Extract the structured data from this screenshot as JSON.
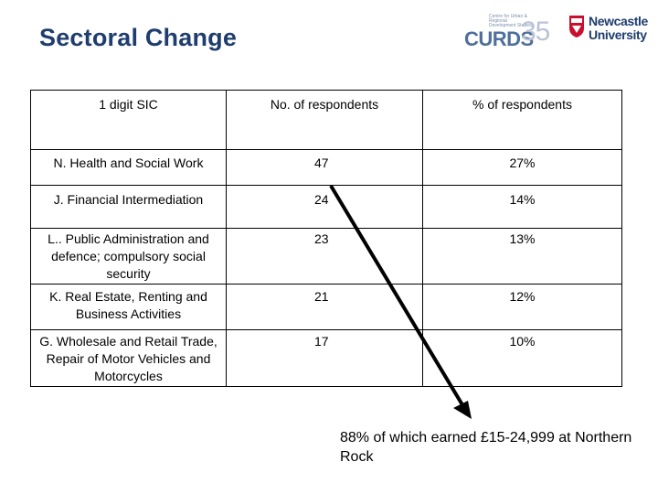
{
  "slide": {
    "title": "Sectoral Change",
    "note": "88% of which earned £15-24,999 at Northern Rock"
  },
  "logos": {
    "curds": {
      "word": "CURDS",
      "number": "35",
      "tagline": "Centre for Urban & Regional Development Studies"
    },
    "newcastle": {
      "line1": "Newcastle",
      "line2": "University"
    }
  },
  "table": {
    "headers": [
      "1 digit SIC",
      "No. of respondents",
      "% of respondents"
    ],
    "rows": [
      {
        "sic": "N. Health and Social Work",
        "count": "47",
        "percent": "27%"
      },
      {
        "sic": "J. Financial Intermediation",
        "count": "24",
        "percent": "14%"
      },
      {
        "sic": "L.. Public Administration and defence; compulsory social security",
        "count": "23",
        "percent": "13%"
      },
      {
        "sic": "K. Real Estate, Renting and Business Activities",
        "count": "21",
        "percent": "12%"
      },
      {
        "sic": "G. Wholesale and Retail Trade, Repair of Motor Vehicles and Motorcycles",
        "count": "17",
        "percent": "10%"
      }
    ]
  },
  "colors": {
    "title": "#1f3d6e",
    "logo_blue": "#4f6f9c",
    "crest_red": "#c8102e"
  }
}
